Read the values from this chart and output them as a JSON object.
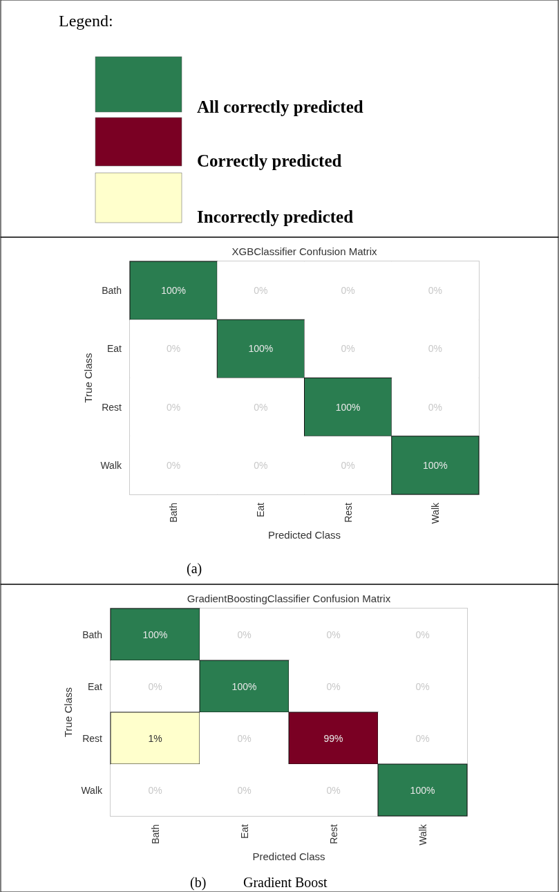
{
  "chart_data": [
    {
      "type": "other",
      "title": "Legend:",
      "annotations": [
        "All correctly predicted",
        "Correctly predicted",
        "Incorrectly predicted"
      ]
    },
    {
      "type": "heatmap",
      "title": "XGBClassifier Confusion Matrix",
      "xlabel": "Predicted Class",
      "ylabel": "True Class",
      "categories": [
        "Bath",
        "Eat",
        "Rest",
        "Walk"
      ],
      "y_categories": [
        "Bath",
        "Eat",
        "Rest",
        "Walk"
      ],
      "cells": [
        [
          100,
          0,
          0,
          0
        ],
        [
          0,
          100,
          0,
          0
        ],
        [
          0,
          0,
          100,
          0
        ],
        [
          0,
          0,
          0,
          100
        ]
      ],
      "cell_labels": [
        [
          "100%",
          "0%",
          "0%",
          "0%"
        ],
        [
          "0%",
          "100%",
          "0%",
          "0%"
        ],
        [
          "0%",
          "0%",
          "100%",
          "0%"
        ],
        [
          "0%",
          "0%",
          "0%",
          "100%"
        ]
      ],
      "annotations": [
        "(a)"
      ]
    },
    {
      "type": "heatmap",
      "title": "GradientBoostingClassifier Confusion Matrix",
      "xlabel": "Predicted Class",
      "ylabel": "True Class",
      "categories": [
        "Bath",
        "Eat",
        "Rest",
        "Walk"
      ],
      "y_categories": [
        "Bath",
        "Eat",
        "Rest",
        "Walk"
      ],
      "cells": [
        [
          100,
          0,
          0,
          0
        ],
        [
          0,
          100,
          0,
          0
        ],
        [
          1,
          0,
          99,
          0
        ],
        [
          0,
          0,
          0,
          100
        ]
      ],
      "cell_labels": [
        [
          "100%",
          "0%",
          "0%",
          "0%"
        ],
        [
          "0%",
          "100%",
          "0%",
          "0%"
        ],
        [
          "1%",
          "0%",
          "99%",
          "0%"
        ],
        [
          "0%",
          "0%",
          "0%",
          "100%"
        ]
      ],
      "annotations": [
        "(b)",
        "Gradient Boost"
      ]
    }
  ]
}
